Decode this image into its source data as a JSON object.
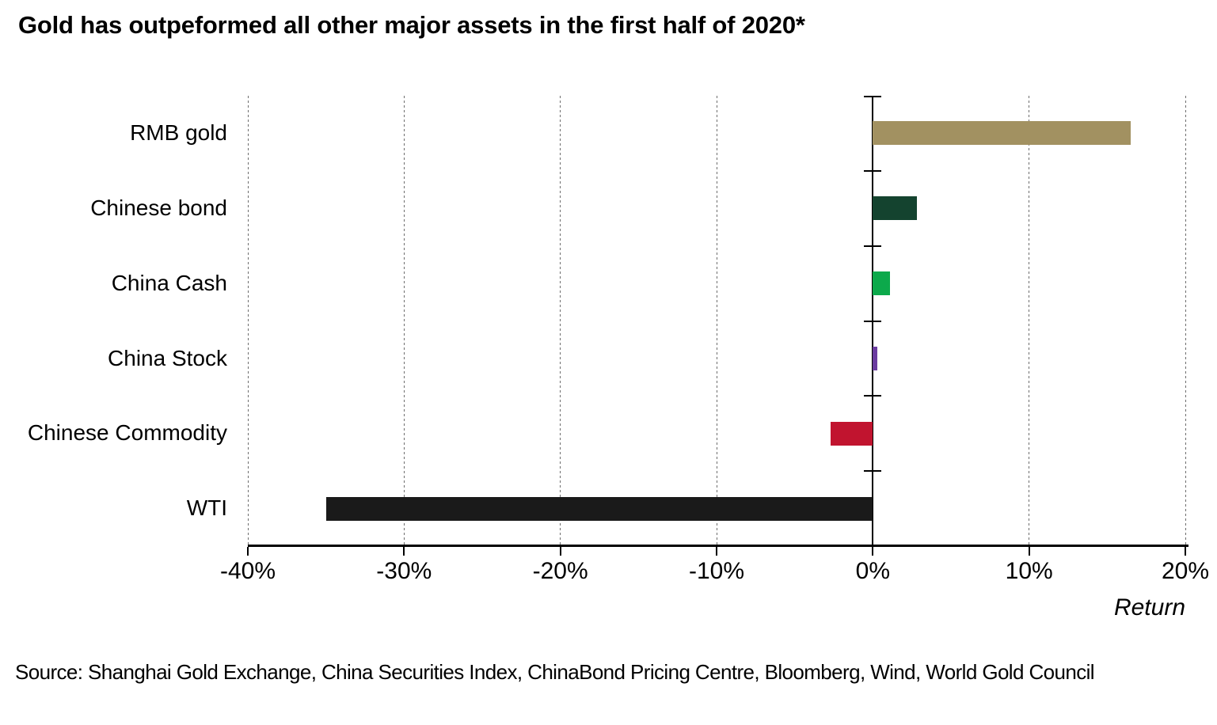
{
  "page": {
    "title": "Gold has outpeformed all other major assets in the first half of 2020*",
    "source": "Source: Shanghai Gold Exchange, China Securities Index, ChinaBond Pricing Centre, Bloomberg, Wind, World Gold Council"
  },
  "chart_data": {
    "type": "bar",
    "orientation": "horizontal",
    "title": "Gold has outpeformed all other major assets in the first half of 2020*",
    "categories": [
      "RMB gold",
      "Chinese bond",
      "China Cash",
      "China Stock",
      "Chinese Commodity",
      "WTI"
    ],
    "values": [
      16.5,
      2.8,
      1.1,
      0.3,
      -2.7,
      -35.0
    ],
    "unit": "%",
    "colors": [
      "#A29161",
      "#14432F",
      "#0CA94B",
      "#6B3CA0",
      "#C1142F",
      "#1A1A1A"
    ],
    "xlim": [
      -40,
      20
    ],
    "x_ticks": [
      {
        "value": -40,
        "label": "-40%"
      },
      {
        "value": -30,
        "label": "-30%"
      },
      {
        "value": -20,
        "label": "-20%"
      },
      {
        "value": -10,
        "label": "-10%"
      },
      {
        "value": 0,
        "label": "0%"
      },
      {
        "value": 10,
        "label": "10%"
      },
      {
        "value": 20,
        "label": "20%"
      }
    ],
    "xlabel": "Return",
    "grid": "vertical-dashed",
    "legend": "none",
    "source": "Source: Shanghai Gold Exchange, China Securities Index, ChinaBond Pricing Centre, Bloomberg, Wind, World Gold Council"
  }
}
